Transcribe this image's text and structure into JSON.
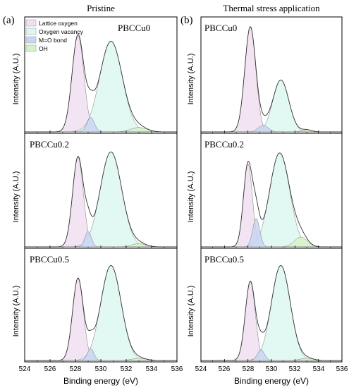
{
  "figure": {
    "columns": [
      {
        "panel_letter": "(a)",
        "title": "Pristine"
      },
      {
        "panel_letter": "(b)",
        "title": "Thermal stress application"
      }
    ],
    "ylabel": "Intensity (A.U.)",
    "xlabel": "Binding energy (eV)",
    "x_ticks": [
      "524",
      "526",
      "528",
      "530",
      "532",
      "534",
      "536"
    ]
  },
  "colors": {
    "lattice": "#f0dff0",
    "vacancy": "#dcf7f1",
    "mo": "#c9d5f2",
    "oh": "#d6f2c9",
    "curve": "#333333",
    "axis": "#000000"
  },
  "chart_data": [
    {
      "type": "area",
      "panel": "(a)",
      "title": "Pristine",
      "sample": "PBCCu0",
      "xlabel": "Binding energy (eV)",
      "ylabel": "Intensity (A.U.)",
      "xlim": [
        524,
        536
      ],
      "legend": {
        "position": "top-left",
        "entries": [
          "Lattice oxygen",
          "Oxygen vacancy",
          "M=O bond",
          "OH"
        ]
      },
      "series": [
        {
          "name": "Lattice oxygen",
          "center": 528.2,
          "fwhm": 1.1,
          "amplitude": 0.87
        },
        {
          "name": "Oxygen vacancy",
          "center": 530.8,
          "fwhm": 2.1,
          "amplitude": 0.82
        },
        {
          "name": "M=O bond",
          "center": 529.2,
          "fwhm": 0.7,
          "amplitude": 0.13
        },
        {
          "name": "OH",
          "center": 533.0,
          "fwhm": 1.5,
          "amplitude": 0.04
        }
      ]
    },
    {
      "type": "area",
      "panel": "(a)",
      "sample": "PBCCu0.2",
      "xlabel": "Binding energy (eV)",
      "ylabel": "Intensity (A.U.)",
      "xlim": [
        524,
        536
      ],
      "series": [
        {
          "name": "Lattice oxygen",
          "center": 528.2,
          "fwhm": 1.0,
          "amplitude": 0.82
        },
        {
          "name": "Oxygen vacancy",
          "center": 530.8,
          "fwhm": 2.0,
          "amplitude": 0.87
        },
        {
          "name": "M=O bond",
          "center": 529.0,
          "fwhm": 0.6,
          "amplitude": 0.14
        },
        {
          "name": "OH",
          "center": 533.0,
          "fwhm": 1.3,
          "amplitude": 0.03
        }
      ]
    },
    {
      "type": "area",
      "panel": "(a)",
      "sample": "PBCCu0.5",
      "xlabel": "Binding energy (eV)",
      "ylabel": "Intensity (A.U.)",
      "xlim": [
        524,
        536
      ],
      "series": [
        {
          "name": "Lattice oxygen",
          "center": 528.2,
          "fwhm": 1.0,
          "amplitude": 0.76
        },
        {
          "name": "Oxygen vacancy",
          "center": 530.8,
          "fwhm": 1.9,
          "amplitude": 0.88
        },
        {
          "name": "M=O bond",
          "center": 529.2,
          "fwhm": 0.6,
          "amplitude": 0.11
        },
        {
          "name": "OH",
          "center": 533.0,
          "fwhm": 1.3,
          "amplitude": 0.02
        }
      ]
    },
    {
      "type": "area",
      "panel": "(b)",
      "title": "Thermal stress application",
      "sample": "PBCCu0",
      "xlabel": "Binding energy (eV)",
      "ylabel": "Intensity (A.U.)",
      "xlim": [
        524,
        536
      ],
      "series": [
        {
          "name": "Lattice oxygen",
          "center": 528.2,
          "fwhm": 1.1,
          "amplitude": 0.95
        },
        {
          "name": "Oxygen vacancy",
          "center": 530.8,
          "fwhm": 1.6,
          "amplitude": 0.47
        },
        {
          "name": "M=O bond",
          "center": 529.3,
          "fwhm": 1.0,
          "amplitude": 0.06
        },
        {
          "name": "OH",
          "center": 533.0,
          "fwhm": 1.0,
          "amplitude": 0.02
        }
      ]
    },
    {
      "type": "area",
      "panel": "(b)",
      "sample": "PBCCu0.2",
      "xlabel": "Binding energy (eV)",
      "ylabel": "Intensity (A.U.)",
      "xlim": [
        524,
        536
      ],
      "series": [
        {
          "name": "Lattice oxygen",
          "center": 528.0,
          "fwhm": 0.9,
          "amplitude": 0.76
        },
        {
          "name": "Oxygen vacancy",
          "center": 530.7,
          "fwhm": 2.0,
          "amplitude": 0.86
        },
        {
          "name": "M=O bond",
          "center": 528.7,
          "fwhm": 0.7,
          "amplitude": 0.26
        },
        {
          "name": "OH",
          "center": 532.5,
          "fwhm": 1.3,
          "amplitude": 0.09
        }
      ]
    },
    {
      "type": "area",
      "panel": "(b)",
      "sample": "PBCCu0.5",
      "xlabel": "Binding energy (eV)",
      "ylabel": "Intensity (A.U.)",
      "xlim": [
        524,
        536
      ],
      "series": [
        {
          "name": "Lattice oxygen",
          "center": 528.2,
          "fwhm": 1.0,
          "amplitude": 0.73
        },
        {
          "name": "Oxygen vacancy",
          "center": 530.8,
          "fwhm": 1.9,
          "amplitude": 0.88
        },
        {
          "name": "M=O bond",
          "center": 529.1,
          "fwhm": 0.7,
          "amplitude": 0.1
        },
        {
          "name": "OH",
          "center": 533.0,
          "fwhm": 1.3,
          "amplitude": 0.02
        }
      ]
    }
  ]
}
